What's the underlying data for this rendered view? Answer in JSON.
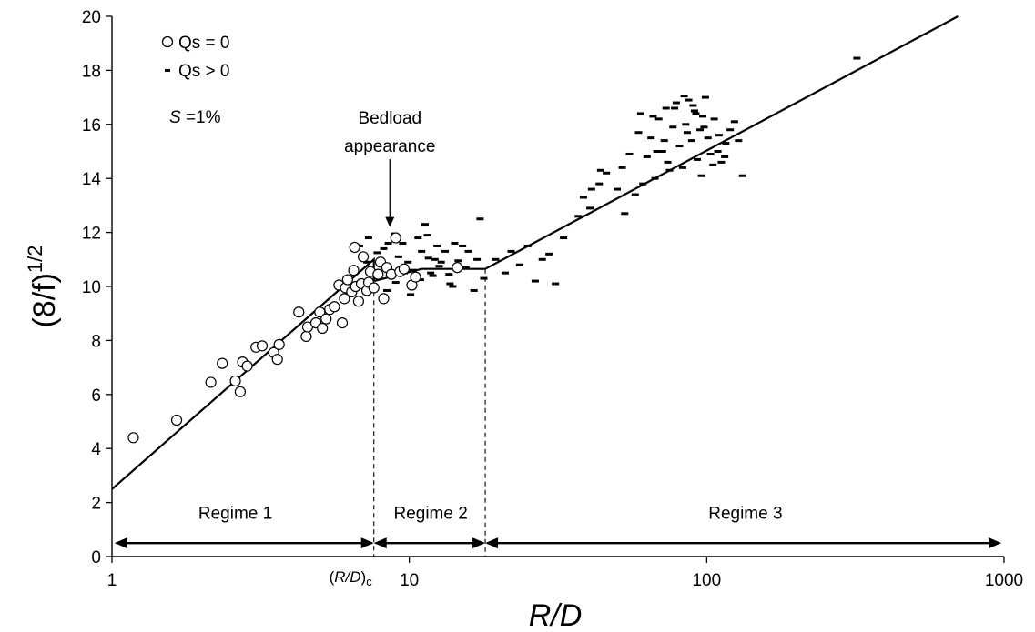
{
  "chart_data": {
    "type": "scatter",
    "x_scale": "log",
    "xlim": [
      1,
      1000
    ],
    "ylim": [
      0,
      20
    ],
    "x_ticks": [
      1,
      10,
      100,
      1000
    ],
    "x_tick_labels": [
      "1",
      "10",
      "100",
      "1000"
    ],
    "y_ticks": [
      0,
      2,
      4,
      6,
      8,
      10,
      12,
      14,
      16,
      18,
      20
    ],
    "y_tick_labels": [
      "0",
      "2",
      "4",
      "6",
      "8",
      "10",
      "12",
      "14",
      "16",
      "18",
      "20"
    ],
    "xlabel": "R/D",
    "ylabel": "(8/f)",
    "ylabel_exponent": "1/2",
    "grid": false,
    "legend": {
      "position": "top-left",
      "circle_label": "Qs = 0",
      "dash_label": "Qs > 0",
      "slope_symbol": "S",
      "slope_value": " =1%"
    },
    "annotation": {
      "text_line1": "Bedload",
      "text_line2": "appearance",
      "x": 8.6,
      "y_arrow_tip": 12.2
    },
    "critical_label": {
      "prefix": "(",
      "text": "R/D",
      "suffix": ")",
      "subscript": "c",
      "x": 7.6
    },
    "regimes": [
      {
        "label": "Regime 1",
        "x_start": 1.02,
        "x_end": 7.6,
        "label_x": 2.6
      },
      {
        "label": "Regime 2",
        "x_start": 7.6,
        "x_end": 18,
        "label_x": 11.8
      },
      {
        "label": "Regime 3",
        "x_start": 18,
        "x_end": 980,
        "label_x": 135
      }
    ],
    "regime_arrow_y": 0.5,
    "regime_label_y": 1.4,
    "boundaries_x": [
      7.6,
      18
    ],
    "fit_line": {
      "points": [
        [
          1,
          2.5
        ],
        [
          7.6,
          11.0
        ],
        [
          7.6,
          10.2
        ],
        [
          11,
          10.65
        ],
        [
          18,
          10.65
        ],
        [
          700,
          20
        ]
      ]
    },
    "series": [
      {
        "name": "Qs = 0",
        "marker": "circle",
        "points": [
          [
            1.18,
            4.4
          ],
          [
            1.65,
            5.05
          ],
          [
            2.15,
            6.45
          ],
          [
            2.35,
            7.15
          ],
          [
            2.6,
            6.5
          ],
          [
            2.7,
            6.1
          ],
          [
            2.75,
            7.2
          ],
          [
            2.85,
            7.05
          ],
          [
            3.05,
            7.75
          ],
          [
            3.2,
            7.8
          ],
          [
            3.5,
            7.55
          ],
          [
            3.6,
            7.3
          ],
          [
            3.65,
            7.85
          ],
          [
            4.25,
            9.05
          ],
          [
            4.5,
            8.15
          ],
          [
            4.55,
            8.5
          ],
          [
            4.85,
            8.65
          ],
          [
            5.0,
            9.05
          ],
          [
            5.1,
            8.45
          ],
          [
            5.25,
            8.8
          ],
          [
            5.4,
            9.15
          ],
          [
            5.6,
            9.25
          ],
          [
            5.8,
            10.05
          ],
          [
            5.95,
            8.65
          ],
          [
            6.05,
            9.55
          ],
          [
            6.1,
            9.95
          ],
          [
            6.2,
            10.25
          ],
          [
            6.4,
            9.8
          ],
          [
            6.5,
            10.6
          ],
          [
            6.55,
            11.45
          ],
          [
            6.6,
            10.0
          ],
          [
            6.75,
            9.45
          ],
          [
            6.9,
            10.1
          ],
          [
            7.0,
            11.1
          ],
          [
            7.2,
            9.85
          ],
          [
            7.3,
            10.15
          ],
          [
            7.4,
            10.55
          ],
          [
            7.6,
            9.95
          ],
          [
            7.85,
            10.45
          ],
          [
            8.0,
            10.9
          ],
          [
            8.2,
            9.55
          ],
          [
            8.4,
            10.7
          ],
          [
            8.7,
            10.45
          ],
          [
            9.0,
            11.8
          ],
          [
            9.3,
            10.55
          ],
          [
            9.6,
            10.65
          ],
          [
            10.2,
            10.05
          ],
          [
            10.5,
            10.35
          ],
          [
            14.5,
            10.7
          ]
        ]
      },
      {
        "name": "Qs > 0",
        "marker": "dash",
        "points": [
          [
            6.8,
            11.5
          ],
          [
            7.3,
            11.8
          ],
          [
            7.8,
            11.25
          ],
          [
            8.2,
            11.4
          ],
          [
            8.5,
            11.6
          ],
          [
            8.9,
            11.95
          ],
          [
            9.2,
            11.1
          ],
          [
            9.5,
            11.6
          ],
          [
            9.9,
            10.9
          ],
          [
            10.3,
            10.6
          ],
          [
            10.7,
            11.8
          ],
          [
            11.0,
            11.3
          ],
          [
            11.3,
            12.3
          ],
          [
            11.6,
            11.05
          ],
          [
            12.0,
            10.4
          ],
          [
            12.4,
            11.5
          ],
          [
            12.8,
            10.9
          ],
          [
            13.2,
            11.3
          ],
          [
            13.7,
            10.1
          ],
          [
            14.2,
            11.6
          ],
          [
            14.6,
            10.95
          ],
          [
            15.1,
            11.5
          ],
          [
            15.8,
            11.3
          ],
          [
            16.5,
            9.85
          ],
          [
            16.9,
            11.0
          ],
          [
            17.3,
            12.5
          ],
          [
            17.8,
            10.3
          ],
          [
            8.4,
            9.85
          ],
          [
            9.0,
            10.15
          ],
          [
            9.6,
            10.5
          ],
          [
            10.1,
            9.7
          ],
          [
            10.9,
            10.25
          ],
          [
            11.8,
            10.5
          ],
          [
            12.6,
            10.75
          ],
          [
            13.6,
            10.45
          ],
          [
            14.0,
            10.0
          ],
          [
            7.2,
            10.9
          ],
          [
            11.5,
            11.9
          ],
          [
            12.2,
            11.0
          ],
          [
            15.5,
            10.7
          ],
          [
            19.5,
            11.0
          ],
          [
            21.0,
            10.5
          ],
          [
            22.0,
            11.3
          ],
          [
            23.5,
            10.8
          ],
          [
            25.0,
            11.5
          ],
          [
            26.5,
            10.2
          ],
          [
            28.0,
            11.0
          ],
          [
            29.5,
            11.2
          ],
          [
            31.0,
            10.1
          ],
          [
            33.0,
            11.8
          ],
          [
            37.0,
            12.6
          ],
          [
            38.5,
            13.3
          ],
          [
            40.5,
            12.9
          ],
          [
            43.5,
            13.8
          ],
          [
            46.0,
            14.2
          ],
          [
            50.0,
            13.6
          ],
          [
            53.0,
            12.7
          ],
          [
            55.0,
            14.9
          ],
          [
            57.5,
            13.4
          ],
          [
            59.0,
            15.7
          ],
          [
            61.0,
            13.8
          ],
          [
            63.0,
            14.8
          ],
          [
            65.0,
            15.5
          ],
          [
            67.0,
            14.0
          ],
          [
            69.0,
            16.2
          ],
          [
            71.0,
            15.0
          ],
          [
            73.0,
            16.6
          ],
          [
            75.0,
            14.3
          ],
          [
            77.0,
            15.9
          ],
          [
            79.0,
            16.8
          ],
          [
            81.0,
            15.2
          ],
          [
            83.0,
            14.4
          ],
          [
            85.0,
            16.0
          ],
          [
            87.0,
            16.9
          ],
          [
            89.0,
            15.4
          ],
          [
            91.0,
            16.5
          ],
          [
            93.0,
            14.7
          ],
          [
            95.0,
            15.8
          ],
          [
            97.0,
            16.3
          ],
          [
            99.0,
            17.0
          ],
          [
            101.0,
            15.5
          ],
          [
            103.0,
            14.9
          ],
          [
            106.0,
            16.2
          ],
          [
            109.0,
            15.0
          ],
          [
            112.0,
            14.6
          ],
          [
            116.0,
            15.3
          ],
          [
            120.0,
            15.8
          ],
          [
            124.0,
            16.1
          ],
          [
            128.0,
            15.4
          ],
          [
            132.0,
            14.1
          ],
          [
            60.0,
            16.4
          ],
          [
            66.0,
            16.3
          ],
          [
            72.0,
            15.4
          ],
          [
            78.0,
            16.6
          ],
          [
            84.0,
            17.05
          ],
          [
            90.0,
            16.7
          ],
          [
            96.0,
            14.1
          ],
          [
            105.0,
            14.5
          ],
          [
            115.0,
            14.8
          ],
          [
            68.0,
            15.0
          ],
          [
            74.0,
            14.6
          ],
          [
            86.0,
            15.7
          ],
          [
            92.0,
            16.4
          ],
          [
            98.0,
            15.9
          ],
          [
            110.0,
            15.6
          ],
          [
            52.0,
            14.4
          ],
          [
            41.0,
            13.6
          ],
          [
            44.0,
            14.3
          ],
          [
            320.0,
            18.45
          ]
        ]
      }
    ]
  }
}
